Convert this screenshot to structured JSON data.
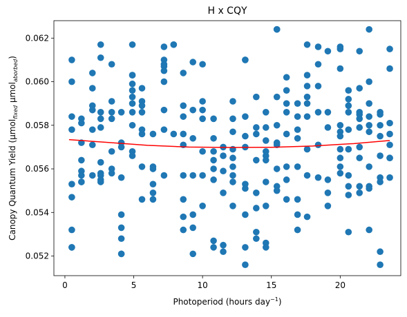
{
  "chart_data": {
    "type": "scatter",
    "title": "H x CQY",
    "xlabel": "Photoperiod (hours day",
    "xlabel_sup": "−1",
    "xlabel_close": ")",
    "ylabel_main": "Canopy Quantum Yield (μmol",
    "ylabel_sub1": "fixed",
    "ylabel_mid": " μmol",
    "ylabel_sub2": "aborbed",
    "ylabel_close": ")",
    "xlim": [
      -0.8,
      24.4
    ],
    "ylim": [
      0.0511,
      0.0628
    ],
    "xticks": [
      0,
      5,
      10,
      15,
      20
    ],
    "yticks": [
      0.052,
      0.054,
      0.056,
      0.058,
      0.06,
      0.062
    ],
    "ytick_labels": [
      "0.052",
      "0.054",
      "0.056",
      "0.058",
      "0.060",
      "0.062"
    ],
    "grid": false,
    "legend": "none",
    "colors": {
      "points": "#1f77b4",
      "fit": "#ff0000"
    },
    "series": [
      {
        "kind": "points",
        "points": [
          [
            0.5,
            0.061
          ],
          [
            0.5,
            0.06
          ],
          [
            0.5,
            0.0584
          ],
          [
            0.5,
            0.0578
          ],
          [
            0.5,
            0.0553
          ],
          [
            0.5,
            0.0547
          ],
          [
            0.5,
            0.0532
          ],
          [
            0.5,
            0.0524
          ],
          [
            0.5,
            0.0524
          ],
          [
            1.2,
            0.0583
          ],
          [
            1.2,
            0.0581
          ],
          [
            1.2,
            0.0572
          ],
          [
            1.2,
            0.0564
          ],
          [
            1.2,
            0.0559
          ],
          [
            1.2,
            0.0557
          ],
          [
            1.2,
            0.0554
          ],
          [
            1.2,
            0.0554
          ],
          [
            2.0,
            0.0604
          ],
          [
            2.0,
            0.0597
          ],
          [
            2.0,
            0.0589
          ],
          [
            2.0,
            0.0587
          ],
          [
            2.0,
            0.0578
          ],
          [
            2.0,
            0.0571
          ],
          [
            2.0,
            0.0557
          ],
          [
            2.6,
            0.0617
          ],
          [
            2.6,
            0.0611
          ],
          [
            2.6,
            0.0586
          ],
          [
            2.6,
            0.0583
          ],
          [
            2.6,
            0.0579
          ],
          [
            2.6,
            0.0563
          ],
          [
            2.6,
            0.0558
          ],
          [
            2.6,
            0.0557
          ],
          [
            2.6,
            0.0555
          ],
          [
            2.6,
            0.0554
          ],
          [
            3.4,
            0.0608
          ],
          [
            3.4,
            0.0591
          ],
          [
            3.4,
            0.0586
          ],
          [
            3.4,
            0.0583
          ],
          [
            3.4,
            0.0568
          ],
          [
            3.4,
            0.056
          ],
          [
            3.4,
            0.0558
          ],
          [
            4.1,
            0.0586
          ],
          [
            4.1,
            0.0572
          ],
          [
            4.1,
            0.057
          ],
          [
            4.1,
            0.0556
          ],
          [
            4.1,
            0.0539
          ],
          [
            4.1,
            0.0533
          ],
          [
            4.1,
            0.0528
          ],
          [
            4.1,
            0.0521
          ],
          [
            4.1,
            0.0521
          ],
          [
            4.9,
            0.0617
          ],
          [
            4.9,
            0.0603
          ],
          [
            4.9,
            0.0603
          ],
          [
            4.9,
            0.0599
          ],
          [
            4.9,
            0.0596
          ],
          [
            4.9,
            0.0593
          ],
          [
            4.9,
            0.059
          ],
          [
            4.9,
            0.0586
          ],
          [
            4.9,
            0.058
          ],
          [
            4.9,
            0.0568
          ],
          [
            4.9,
            0.0566
          ],
          [
            5.6,
            0.0597
          ],
          [
            5.6,
            0.0591
          ],
          [
            5.6,
            0.0589
          ],
          [
            5.6,
            0.0586
          ],
          [
            5.6,
            0.0578
          ],
          [
            5.6,
            0.0576
          ],
          [
            5.6,
            0.0561
          ],
          [
            5.6,
            0.0546
          ],
          [
            6.4,
            0.0576
          ],
          [
            6.4,
            0.0561
          ],
          [
            6.4,
            0.056
          ],
          [
            6.4,
            0.0553
          ],
          [
            6.4,
            0.0549
          ],
          [
            6.4,
            0.0546
          ],
          [
            7.2,
            0.0616
          ],
          [
            7.2,
            0.061
          ],
          [
            7.2,
            0.0608
          ],
          [
            7.2,
            0.0607
          ],
          [
            7.2,
            0.0605
          ],
          [
            7.2,
            0.06
          ],
          [
            7.2,
            0.0587
          ],
          [
            7.2,
            0.0578
          ],
          [
            7.2,
            0.0557
          ],
          [
            7.9,
            0.0617
          ],
          [
            7.9,
            0.0617
          ],
          [
            7.9,
            0.0576
          ],
          [
            8.6,
            0.0604
          ],
          [
            8.6,
            0.0589
          ],
          [
            8.6,
            0.0584
          ],
          [
            8.6,
            0.0576
          ],
          [
            8.6,
            0.0571
          ],
          [
            8.6,
            0.0557
          ],
          [
            8.6,
            0.0546
          ],
          [
            8.6,
            0.0538
          ],
          [
            8.6,
            0.0532
          ],
          [
            9.3,
            0.0609
          ],
          [
            9.3,
            0.0587
          ],
          [
            9.3,
            0.0574
          ],
          [
            9.3,
            0.0557
          ],
          [
            9.3,
            0.0539
          ],
          [
            9.3,
            0.0533
          ],
          [
            9.3,
            0.0521
          ],
          [
            10.0,
            0.0608
          ],
          [
            10.0,
            0.0591
          ],
          [
            10.0,
            0.0587
          ],
          [
            10.0,
            0.0583
          ],
          [
            10.0,
            0.0568
          ],
          [
            10.0,
            0.0557
          ],
          [
            10.0,
            0.0543
          ],
          [
            10.8,
            0.0583
          ],
          [
            10.8,
            0.0574
          ],
          [
            10.8,
            0.0568
          ],
          [
            10.8,
            0.0564
          ],
          [
            10.8,
            0.056
          ],
          [
            10.8,
            0.0555
          ],
          [
            10.8,
            0.0527
          ],
          [
            10.8,
            0.0524
          ],
          [
            11.5,
            0.057
          ],
          [
            11.5,
            0.0566
          ],
          [
            11.5,
            0.0559
          ],
          [
            11.5,
            0.0549
          ],
          [
            11.5,
            0.0525
          ],
          [
            11.5,
            0.0522
          ],
          [
            12.2,
            0.0591
          ],
          [
            12.2,
            0.0583
          ],
          [
            12.2,
            0.0577
          ],
          [
            12.2,
            0.0569
          ],
          [
            12.2,
            0.0565
          ],
          [
            12.2,
            0.0561
          ],
          [
            12.2,
            0.0557
          ],
          [
            12.2,
            0.0554
          ],
          [
            12.2,
            0.0543
          ],
          [
            13.1,
            0.061
          ],
          [
            13.1,
            0.061
          ],
          [
            13.1,
            0.0584
          ],
          [
            13.1,
            0.0575
          ],
          [
            13.1,
            0.057
          ],
          [
            13.1,
            0.0553
          ],
          [
            13.1,
            0.0551
          ],
          [
            13.1,
            0.0539
          ],
          [
            13.1,
            0.0524
          ],
          [
            13.1,
            0.0516
          ],
          [
            13.9,
            0.0593
          ],
          [
            13.9,
            0.0579
          ],
          [
            13.9,
            0.0576
          ],
          [
            13.9,
            0.0564
          ],
          [
            13.9,
            0.0549
          ],
          [
            13.9,
            0.0542
          ],
          [
            13.9,
            0.0531
          ],
          [
            13.9,
            0.0528
          ],
          [
            14.6,
            0.0586
          ],
          [
            14.6,
            0.0579
          ],
          [
            14.6,
            0.0573
          ],
          [
            14.6,
            0.0568
          ],
          [
            14.6,
            0.0566
          ],
          [
            14.6,
            0.0564
          ],
          [
            14.6,
            0.0554
          ],
          [
            14.6,
            0.0543
          ],
          [
            14.6,
            0.0526
          ],
          [
            14.6,
            0.0524
          ],
          [
            15.4,
            0.0624
          ],
          [
            15.4,
            0.0624
          ],
          [
            15.4,
            0.0593
          ],
          [
            15.4,
            0.058
          ],
          [
            15.4,
            0.0572
          ],
          [
            15.4,
            0.0571
          ],
          [
            15.4,
            0.056
          ],
          [
            15.4,
            0.0552
          ],
          [
            15.4,
            0.055
          ],
          [
            16.1,
            0.0602
          ],
          [
            16.1,
            0.0596
          ],
          [
            16.1,
            0.059
          ],
          [
            16.1,
            0.0586
          ],
          [
            16.1,
            0.0576
          ],
          [
            16.1,
            0.0561
          ],
          [
            16.1,
            0.0555
          ],
          [
            16.1,
            0.0546
          ],
          [
            16.9,
            0.059
          ],
          [
            16.9,
            0.0584
          ],
          [
            16.9,
            0.0578
          ],
          [
            16.9,
            0.0574
          ],
          [
            16.9,
            0.0561
          ],
          [
            16.9,
            0.0546
          ],
          [
            16.9,
            0.0539
          ],
          [
            16.9,
            0.0532
          ],
          [
            17.6,
            0.0617
          ],
          [
            17.6,
            0.0603
          ],
          [
            17.6,
            0.0598
          ],
          [
            17.6,
            0.0593
          ],
          [
            17.6,
            0.059
          ],
          [
            17.6,
            0.0584
          ],
          [
            17.6,
            0.0569
          ],
          [
            17.6,
            0.0557
          ],
          [
            17.6,
            0.0538
          ],
          [
            18.4,
            0.0616
          ],
          [
            18.4,
            0.0608
          ],
          [
            18.4,
            0.0598
          ],
          [
            18.4,
            0.0586
          ],
          [
            18.4,
            0.0571
          ],
          [
            18.4,
            0.0556
          ],
          [
            19.1,
            0.0614
          ],
          [
            19.1,
            0.0586
          ],
          [
            19.1,
            0.0579
          ],
          [
            19.1,
            0.0555
          ],
          [
            19.1,
            0.0549
          ],
          [
            19.1,
            0.0543
          ],
          [
            20.0,
            0.0616
          ],
          [
            20.0,
            0.0615
          ],
          [
            20.0,
            0.0606
          ],
          [
            20.0,
            0.058
          ],
          [
            20.0,
            0.0577
          ],
          [
            20.0,
            0.0575
          ],
          [
            20.0,
            0.0569
          ],
          [
            20.0,
            0.0565
          ],
          [
            20.0,
            0.0561
          ],
          [
            20.0,
            0.0558
          ],
          [
            20.6,
            0.0596
          ],
          [
            20.6,
            0.0592
          ],
          [
            20.6,
            0.0589
          ],
          [
            20.6,
            0.0586
          ],
          [
            20.6,
            0.0578
          ],
          [
            20.6,
            0.0569
          ],
          [
            20.6,
            0.0557
          ],
          [
            20.6,
            0.0552
          ],
          [
            20.6,
            0.0548
          ],
          [
            20.6,
            0.0531
          ],
          [
            21.4,
            0.0614
          ],
          [
            21.4,
            0.0597
          ],
          [
            21.4,
            0.0586
          ],
          [
            21.4,
            0.0585
          ],
          [
            21.4,
            0.0583
          ],
          [
            21.4,
            0.0579
          ],
          [
            21.4,
            0.057
          ],
          [
            21.4,
            0.0565
          ],
          [
            21.4,
            0.0552
          ],
          [
            21.4,
            0.0549
          ],
          [
            22.1,
            0.0624
          ],
          [
            22.1,
            0.06
          ],
          [
            22.1,
            0.059
          ],
          [
            22.1,
            0.0584
          ],
          [
            22.1,
            0.058
          ],
          [
            22.1,
            0.0577
          ],
          [
            22.1,
            0.0561
          ],
          [
            22.1,
            0.0552
          ],
          [
            22.1,
            0.0551
          ],
          [
            22.1,
            0.0532
          ],
          [
            22.9,
            0.0586
          ],
          [
            22.9,
            0.0585
          ],
          [
            22.9,
            0.058
          ],
          [
            22.9,
            0.0575
          ],
          [
            22.9,
            0.0566
          ],
          [
            22.9,
            0.0556
          ],
          [
            22.9,
            0.0554
          ],
          [
            22.9,
            0.0522
          ],
          [
            22.9,
            0.0516
          ],
          [
            23.6,
            0.0615
          ],
          [
            23.6,
            0.0606
          ],
          [
            23.6,
            0.0581
          ],
          [
            23.6,
            0.0576
          ],
          [
            23.6,
            0.0571
          ],
          [
            23.6,
            0.0565
          ],
          [
            23.6,
            0.0565
          ],
          [
            23.6,
            0.0556
          ]
        ]
      },
      {
        "kind": "fit",
        "points": [
          [
            0.3,
            0.05734
          ],
          [
            3,
            0.05722
          ],
          [
            6,
            0.05708
          ],
          [
            9,
            0.057
          ],
          [
            12,
            0.05698
          ],
          [
            15,
            0.05699
          ],
          [
            18,
            0.05705
          ],
          [
            21,
            0.05716
          ],
          [
            23.6,
            0.0573
          ]
        ]
      }
    ]
  }
}
